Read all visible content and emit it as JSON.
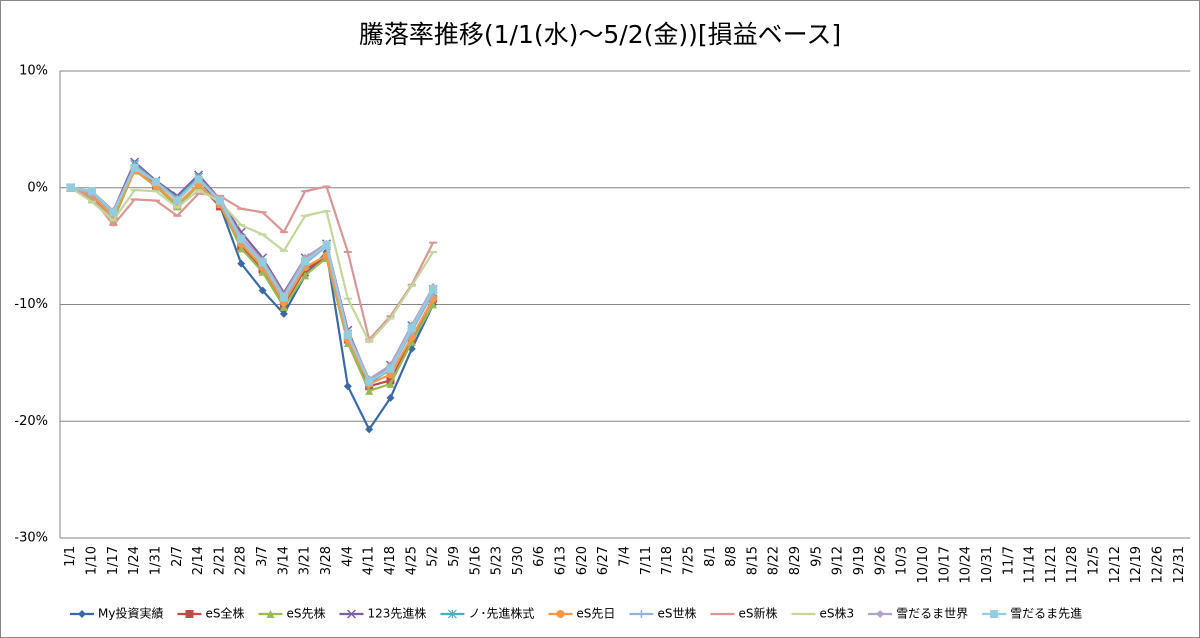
{
  "chart_data": {
    "type": "line",
    "title": "騰落率推移(1/1(水)～5/2(金))[損益ベース]",
    "categories": [
      "1/1",
      "1/10",
      "1/17",
      "1/24",
      "1/31",
      "2/7",
      "2/14",
      "2/21",
      "2/28",
      "3/7",
      "3/14",
      "3/21",
      "3/28",
      "4/4",
      "4/11",
      "4/18",
      "4/25",
      "5/2",
      "5/9",
      "5/16",
      "5/23",
      "5/30",
      "6/6",
      "6/13",
      "6/20",
      "6/27",
      "7/4",
      "7/11",
      "7/18",
      "7/25",
      "8/1",
      "8/8",
      "8/15",
      "8/22",
      "8/29",
      "9/5",
      "9/12",
      "9/19",
      "9/26",
      "10/3",
      "10/10",
      "10/17",
      "10/24",
      "10/31",
      "11/7",
      "11/14",
      "11/21",
      "11/28",
      "12/5",
      "12/12",
      "12/19",
      "12/26",
      "12/31"
    ],
    "ylim": [
      -30,
      10
    ],
    "yticks": [
      {
        "value": -30,
        "label": "-30%"
      },
      {
        "value": -20,
        "label": "-20%"
      },
      {
        "value": -10,
        "label": "-10%"
      },
      {
        "value": 0,
        "label": "0%"
      },
      {
        "value": 10,
        "label": "10%"
      }
    ],
    "grid": true,
    "legend": "bottom",
    "series": [
      {
        "name": "My投資実績",
        "color": "#3a6aa6",
        "marker": "diamond",
        "values": [
          0,
          -0.5,
          -2,
          1.8,
          0.4,
          -1,
          0.8,
          -1.5,
          -6.5,
          -8.8,
          -10.8,
          -7.5,
          -5.5,
          -17,
          -20.7,
          -18,
          -13.8,
          -10,
          null,
          null,
          null,
          null,
          null,
          null,
          null,
          null,
          null,
          null,
          null,
          null,
          null,
          null,
          null,
          null,
          null,
          null,
          null,
          null,
          null,
          null,
          null,
          null,
          null,
          null,
          null,
          null,
          null,
          null,
          null,
          null,
          null,
          null,
          null
        ]
      },
      {
        "name": "eS全株",
        "color": "#be4b48",
        "marker": "square",
        "values": [
          0,
          -0.7,
          -2.5,
          1.5,
          0.2,
          -1.5,
          0.3,
          -1.6,
          -5,
          -7,
          -10,
          -7,
          -6,
          -13,
          -17,
          -16.5,
          -13,
          -9.5,
          null,
          null,
          null,
          null,
          null,
          null,
          null,
          null,
          null,
          null,
          null,
          null,
          null,
          null,
          null,
          null,
          null,
          null,
          null,
          null,
          null,
          null,
          null,
          null,
          null,
          null,
          null,
          null,
          null,
          null,
          null,
          null,
          null,
          null,
          null
        ]
      },
      {
        "name": "eS先株",
        "color": "#98b954",
        "marker": "triangle",
        "values": [
          0,
          -1,
          -2.8,
          1.5,
          0.1,
          -1.6,
          0.2,
          -1.4,
          -5.2,
          -7.2,
          -10.2,
          -7.5,
          -6,
          -13.3,
          -17.4,
          -16.8,
          -13.2,
          -10,
          null,
          null,
          null,
          null,
          null,
          null,
          null,
          null,
          null,
          null,
          null,
          null,
          null,
          null,
          null,
          null,
          null,
          null,
          null,
          null,
          null,
          null,
          null,
          null,
          null,
          null,
          null,
          null,
          null,
          null,
          null,
          null,
          null,
          null,
          null
        ]
      },
      {
        "name": "123先進株",
        "color": "#7d60a0",
        "marker": "x",
        "values": [
          0,
          -0.3,
          -2,
          2.2,
          0.6,
          -0.7,
          1.1,
          -1,
          -3.8,
          -6,
          -9,
          -6,
          -4.8,
          -12.2,
          -16.5,
          -15.2,
          -11.8,
          -8.7,
          null,
          null,
          null,
          null,
          null,
          null,
          null,
          null,
          null,
          null,
          null,
          null,
          null,
          null,
          null,
          null,
          null,
          null,
          null,
          null,
          null,
          null,
          null,
          null,
          null,
          null,
          null,
          null,
          null,
          null,
          null,
          null,
          null,
          null,
          null
        ]
      },
      {
        "name": "ノ･先進株式",
        "color": "#4bacc6",
        "marker": "star",
        "values": [
          0,
          -0.3,
          -2.2,
          2,
          0.5,
          -0.9,
          0.9,
          -1.1,
          -4.3,
          -6.4,
          -9.4,
          -6.4,
          -5,
          -12.5,
          -16.7,
          -15.6,
          -12.2,
          -9,
          null,
          null,
          null,
          null,
          null,
          null,
          null,
          null,
          null,
          null,
          null,
          null,
          null,
          null,
          null,
          null,
          null,
          null,
          null,
          null,
          null,
          null,
          null,
          null,
          null,
          null,
          null,
          null,
          null,
          null,
          null,
          null,
          null,
          null,
          null
        ]
      },
      {
        "name": "eS先日",
        "color": "#f79646",
        "marker": "circle",
        "values": [
          0,
          -0.6,
          -2.5,
          1.5,
          0.2,
          -1.4,
          0.3,
          -1.4,
          -4.8,
          -6.8,
          -9.8,
          -6.8,
          -5.8,
          -13,
          -16.8,
          -16,
          -12.8,
          -9.5,
          null,
          null,
          null,
          null,
          null,
          null,
          null,
          null,
          null,
          null,
          null,
          null,
          null,
          null,
          null,
          null,
          null,
          null,
          null,
          null,
          null,
          null,
          null,
          null,
          null,
          null,
          null,
          null,
          null,
          null,
          null,
          null,
          null,
          null,
          null
        ]
      },
      {
        "name": "eS世株",
        "color": "#95b3d7",
        "marker": "plus",
        "values": [
          0,
          -0.4,
          -2.2,
          1.9,
          0.5,
          -1,
          0.8,
          -1.2,
          -4.5,
          -6.5,
          -9.5,
          -6.5,
          -5,
          -12.6,
          -16.6,
          -15.6,
          -12.3,
          -9,
          null,
          null,
          null,
          null,
          null,
          null,
          null,
          null,
          null,
          null,
          null,
          null,
          null,
          null,
          null,
          null,
          null,
          null,
          null,
          null,
          null,
          null,
          null,
          null,
          null,
          null,
          null,
          null,
          null,
          null,
          null,
          null,
          null,
          null,
          null
        ]
      },
      {
        "name": "eS新株",
        "color": "#d99694",
        "marker": "dash",
        "values": [
          0,
          -0.8,
          -3.2,
          -1,
          -1.1,
          -2.4,
          -0.5,
          -0.7,
          -1.8,
          -2.1,
          -3.8,
          -0.3,
          0.1,
          -5.5,
          -13,
          -11,
          -8.3,
          -4.7,
          null,
          null,
          null,
          null,
          null,
          null,
          null,
          null,
          null,
          null,
          null,
          null,
          null,
          null,
          null,
          null,
          null,
          null,
          null,
          null,
          null,
          null,
          null,
          null,
          null,
          null,
          null,
          null,
          null,
          null,
          null,
          null,
          null,
          null,
          null
        ]
      },
      {
        "name": "eS株3",
        "color": "#c3d69b",
        "marker": "dash",
        "values": [
          0,
          -1.2,
          -2.8,
          -0.2,
          -0.3,
          -1.7,
          -0.2,
          -1.2,
          -3.2,
          -4,
          -5.4,
          -2.4,
          -2,
          -9.5,
          -13.2,
          -11.2,
          -8.4,
          -5.5,
          null,
          null,
          null,
          null,
          null,
          null,
          null,
          null,
          null,
          null,
          null,
          null,
          null,
          null,
          null,
          null,
          null,
          null,
          null,
          null,
          null,
          null,
          null,
          null,
          null,
          null,
          null,
          null,
          null,
          null,
          null,
          null,
          null,
          null,
          null
        ]
      },
      {
        "name": "雪だるま世界",
        "color": "#b3a2c7",
        "marker": "diamond",
        "values": [
          0,
          -0.3,
          -2,
          1.8,
          0.5,
          -1,
          0.8,
          -1,
          -4.2,
          -6.2,
          -9.2,
          -6,
          -4.8,
          -12.4,
          -16.4,
          -15.2,
          -11.8,
          -8.5,
          null,
          null,
          null,
          null,
          null,
          null,
          null,
          null,
          null,
          null,
          null,
          null,
          null,
          null,
          null,
          null,
          null,
          null,
          null,
          null,
          null,
          null,
          null,
          null,
          null,
          null,
          null,
          null,
          null,
          null,
          null,
          null,
          null,
          null,
          null
        ]
      },
      {
        "name": "雪だるま先進",
        "color": "#93cddd",
        "marker": "square",
        "values": [
          0,
          -0.3,
          -2.1,
          1.7,
          0.5,
          -1.1,
          0.7,
          -1.1,
          -4.4,
          -6.4,
          -9.4,
          -6.3,
          -4.9,
          -12.6,
          -16.6,
          -15.5,
          -12,
          -8.7,
          null,
          null,
          null,
          null,
          null,
          null,
          null,
          null,
          null,
          null,
          null,
          null,
          null,
          null,
          null,
          null,
          null,
          null,
          null,
          null,
          null,
          null,
          null,
          null,
          null,
          null,
          null,
          null,
          null,
          null,
          null,
          null,
          null,
          null,
          null
        ]
      }
    ]
  }
}
